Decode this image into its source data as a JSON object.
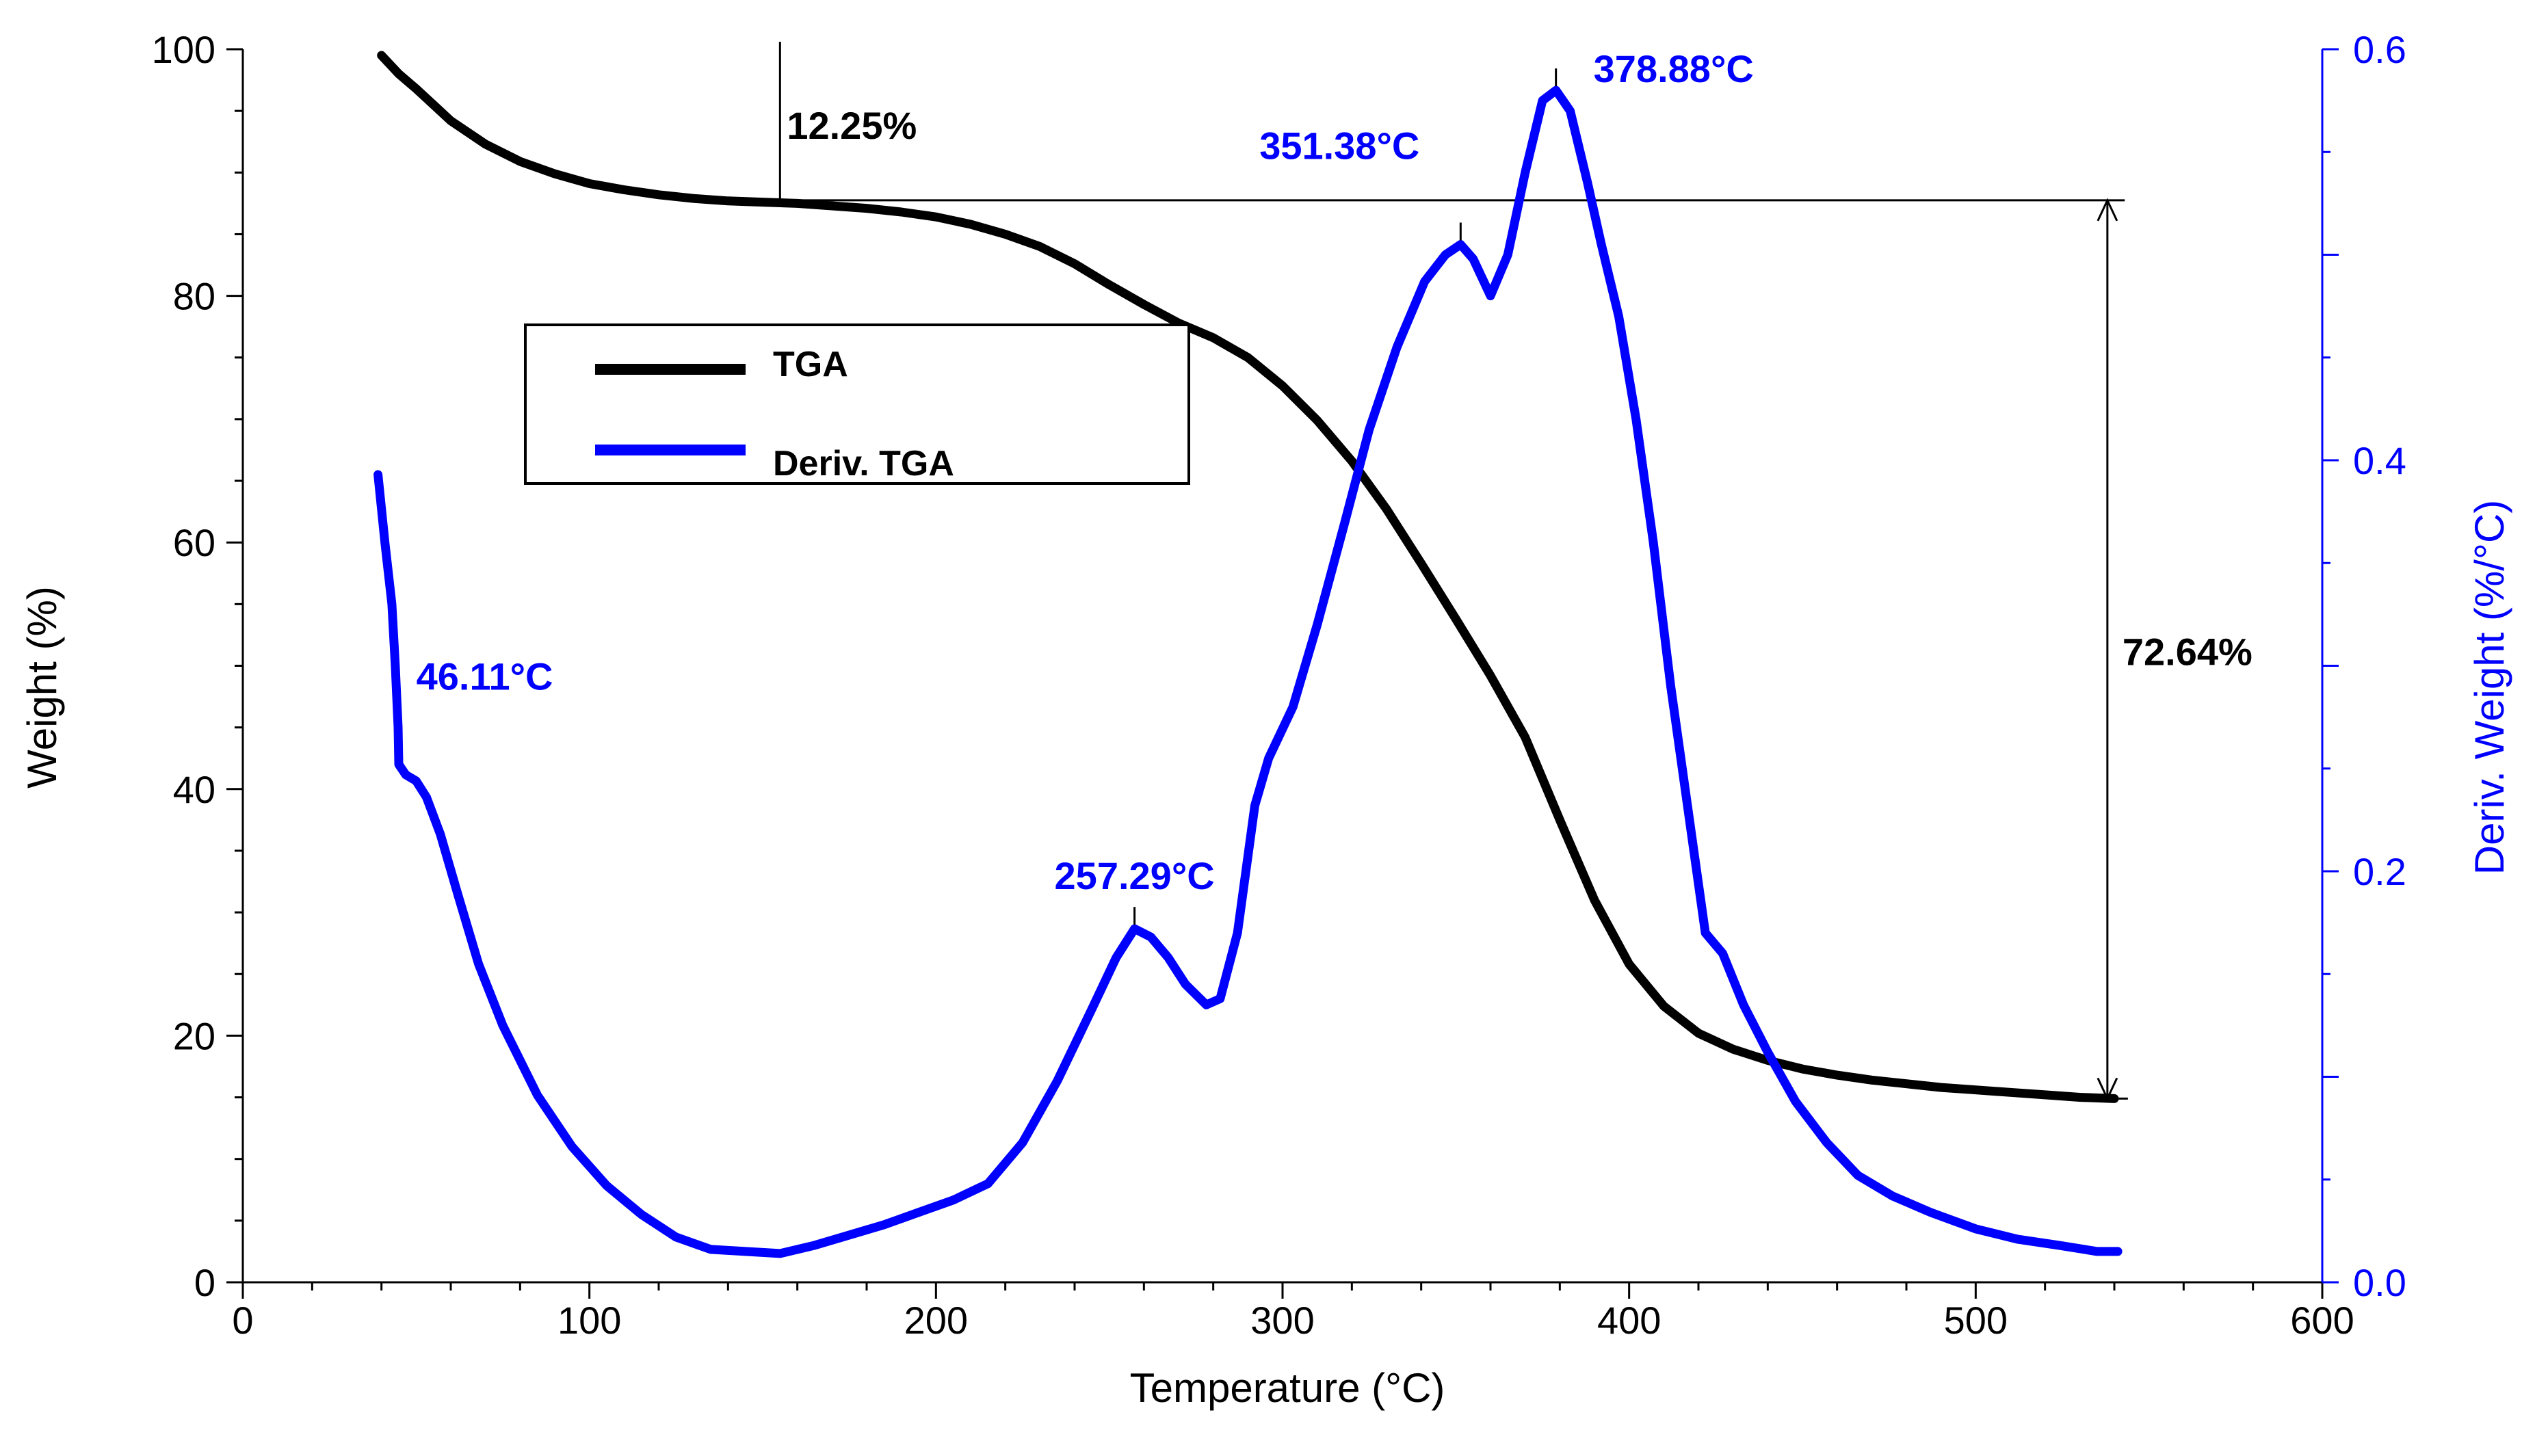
{
  "chart_data": {
    "type": "line",
    "xlabel": "Temperature (°C)",
    "ylabel_left": "Weight (%)",
    "ylabel_right": "Deriv. Weight (%/°C)",
    "xlim": [
      0,
      600
    ],
    "ylim_left": [
      0,
      100
    ],
    "ylim_right": [
      0,
      0.6
    ],
    "x_ticks": [
      "0",
      "100",
      "200",
      "300",
      "400",
      "500",
      "600"
    ],
    "y_left_ticks": [
      "0",
      "20",
      "40",
      "60",
      "80",
      "100"
    ],
    "y_right_ticks": [
      "0.0",
      "0.2",
      "0.4",
      "0.6"
    ],
    "colors": {
      "tga": "#000000",
      "deriv": "#0000ff",
      "right_axis": "#0000ff"
    },
    "legend": {
      "placement": "upper-left",
      "entries": [
        "TGA",
        "Deriv. TGA"
      ]
    },
    "series": [
      {
        "name": "TGA",
        "axis": "left",
        "x": [
          40,
          45,
          50,
          60,
          70,
          80,
          90,
          100,
          110,
          120,
          130,
          140,
          150,
          160,
          170,
          180,
          190,
          200,
          210,
          220,
          230,
          240,
          250,
          260,
          270,
          280,
          290,
          300,
          310,
          320,
          330,
          340,
          350,
          360,
          370,
          380,
          390,
          400,
          410,
          420,
          430,
          440,
          450,
          460,
          470,
          480,
          490,
          500,
          510,
          520,
          530,
          540
        ],
        "y": [
          99.5,
          98.0,
          96.8,
          94.2,
          92.3,
          90.9,
          89.9,
          89.1,
          88.6,
          88.2,
          87.9,
          87.7,
          87.6,
          87.5,
          87.3,
          87.1,
          86.8,
          86.4,
          85.8,
          85.0,
          84.0,
          82.6,
          80.9,
          79.3,
          77.8,
          76.6,
          75.0,
          72.7,
          69.9,
          66.6,
          62.7,
          58.3,
          53.8,
          49.2,
          44.2,
          37.5,
          31.0,
          25.8,
          22.4,
          20.2,
          18.9,
          18.0,
          17.3,
          16.8,
          16.4,
          16.1,
          15.8,
          15.6,
          15.4,
          15.2,
          15.0,
          14.9
        ]
      },
      {
        "name": "Deriv. TGA",
        "axis": "right",
        "x": [
          39,
          41,
          43,
          44,
          44.8,
          45,
          47,
          50,
          53,
          57,
          62,
          68,
          75,
          85,
          95,
          105,
          115,
          125,
          135,
          145,
          155,
          165,
          175,
          185,
          195,
          205,
          215,
          225,
          235,
          245,
          252,
          257.29,
          262,
          267,
          272,
          278,
          282,
          287,
          292,
          296,
          303,
          310,
          318,
          325,
          333,
          341,
          347,
          351.38,
          355,
          360,
          365,
          370,
          375,
          378.88,
          383,
          388,
          392,
          397,
          402,
          407,
          412,
          417,
          422,
          427,
          433,
          440,
          448,
          457,
          466,
          476,
          487,
          500,
          512,
          524,
          535,
          541
        ],
        "y": [
          0.393,
          0.36,
          0.33,
          0.3,
          0.27,
          0.252,
          0.247,
          0.244,
          0.236,
          0.218,
          0.189,
          0.155,
          0.125,
          0.091,
          0.066,
          0.047,
          0.033,
          0.022,
          0.016,
          0.015,
          0.014,
          0.018,
          0.023,
          0.028,
          0.034,
          0.04,
          0.048,
          0.068,
          0.098,
          0.133,
          0.158,
          0.172,
          0.168,
          0.158,
          0.145,
          0.135,
          0.138,
          0.17,
          0.232,
          0.255,
          0.28,
          0.32,
          0.37,
          0.415,
          0.455,
          0.487,
          0.5,
          0.505,
          0.498,
          0.48,
          0.5,
          0.54,
          0.575,
          0.58,
          0.57,
          0.535,
          0.505,
          0.47,
          0.42,
          0.36,
          0.29,
          0.23,
          0.17,
          0.16,
          0.135,
          0.112,
          0.088,
          0.068,
          0.052,
          0.042,
          0.034,
          0.026,
          0.021,
          0.018,
          0.015,
          0.015
        ]
      }
    ],
    "annotations": [
      {
        "text": "12.25%",
        "x": 155,
        "y": 95.5,
        "axis": "left",
        "color": "#000000"
      },
      {
        "text": "72.64%",
        "x": 538,
        "y": 52.0,
        "axis": "left",
        "color": "#000000"
      },
      {
        "text": "46.11°C",
        "x": 46.11,
        "y": 0.3,
        "axis": "right",
        "color": "#0000ff"
      },
      {
        "text": "257.29°C",
        "x": 257.29,
        "y": 0.172,
        "axis": "right",
        "color": "#0000ff"
      },
      {
        "text": "351.38°C",
        "x": 351.38,
        "y": 0.505,
        "axis": "right",
        "color": "#0000ff"
      },
      {
        "text": "378.88°C",
        "x": 378.88,
        "y": 0.58,
        "axis": "right",
        "color": "#0000ff"
      }
    ]
  }
}
